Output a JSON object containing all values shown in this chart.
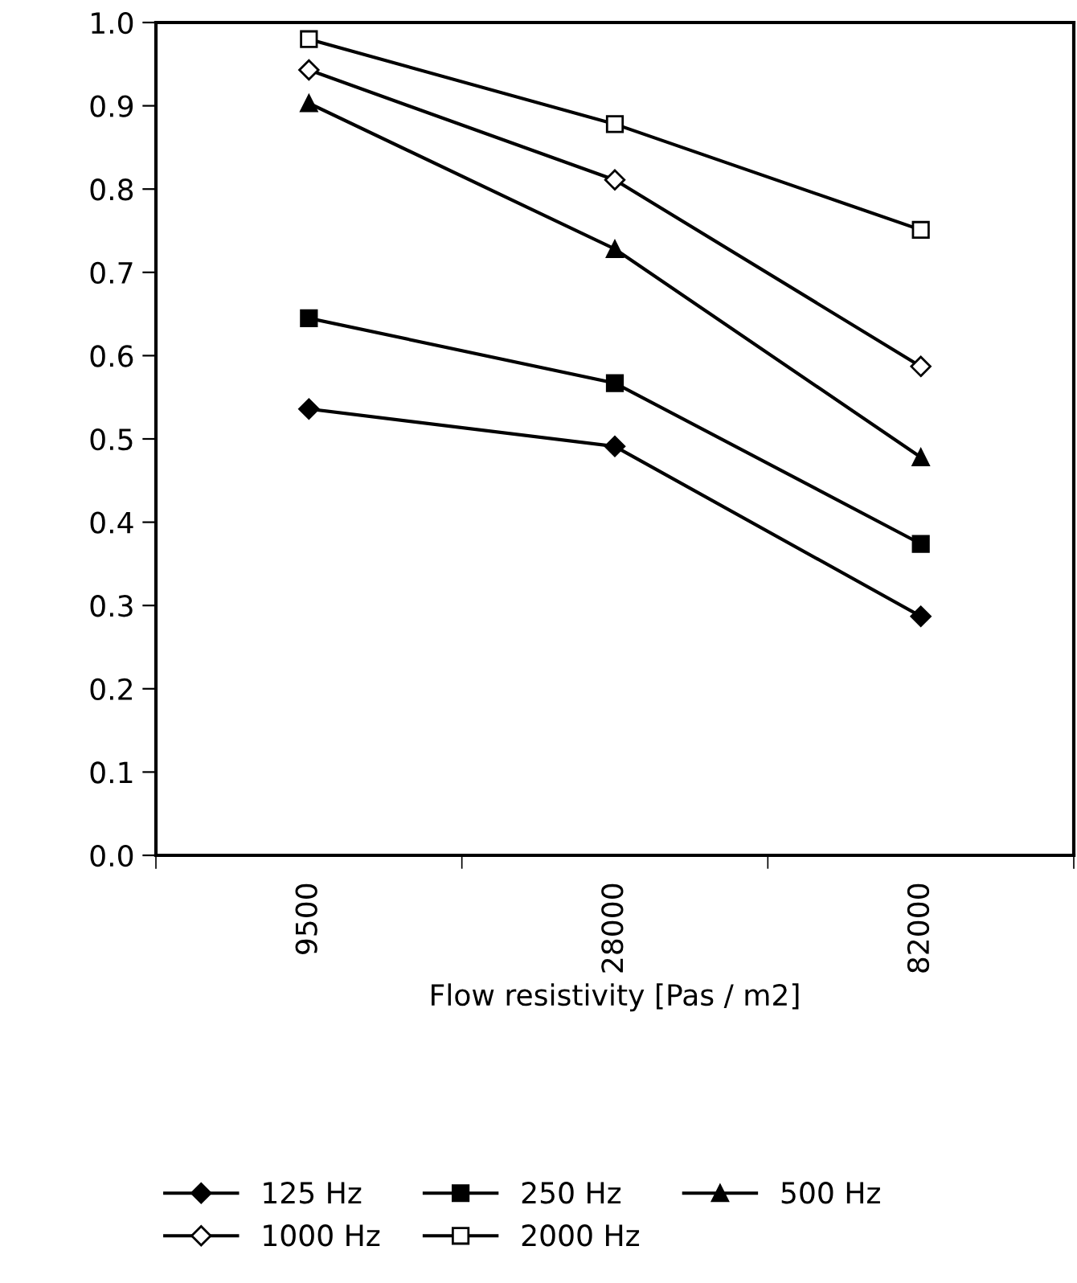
{
  "chart_data": {
    "type": "line",
    "xlabel": "Flow resistivity [Pas / m2]",
    "categories": [
      "9500",
      "28000",
      "82000"
    ],
    "series": [
      {
        "name": "125 Hz",
        "color": "#000000",
        "marker": "diamond",
        "values": [
          0.536,
          0.491,
          0.287
        ]
      },
      {
        "name": "250 Hz",
        "color": "#000000",
        "marker": "square",
        "values": [
          0.645,
          0.567,
          0.374
        ]
      },
      {
        "name": "500 Hz",
        "color": "#000000",
        "marker": "triangle",
        "values": [
          0.903,
          0.728,
          0.478
        ]
      },
      {
        "name": "1000 Hz",
        "color": "#000000",
        "marker": "diamond",
        "values": [
          0.943,
          0.811,
          0.587
        ]
      },
      {
        "name": "2000 Hz",
        "color": "#000000",
        "marker": "square",
        "values": [
          0.98,
          0.878,
          0.751
        ]
      }
    ],
    "ylim": [
      0,
      1
    ],
    "yticks": [
      {
        "value": 0,
        "label": "0.0"
      },
      0.1,
      0.2,
      0.3,
      0.4,
      0.5,
      0.6,
      0.7,
      0.8,
      0.9,
      {
        "value": 1,
        "label": "1.0"
      }
    ],
    "grid": false,
    "legend": "bottom",
    "line_style": "solid"
  }
}
